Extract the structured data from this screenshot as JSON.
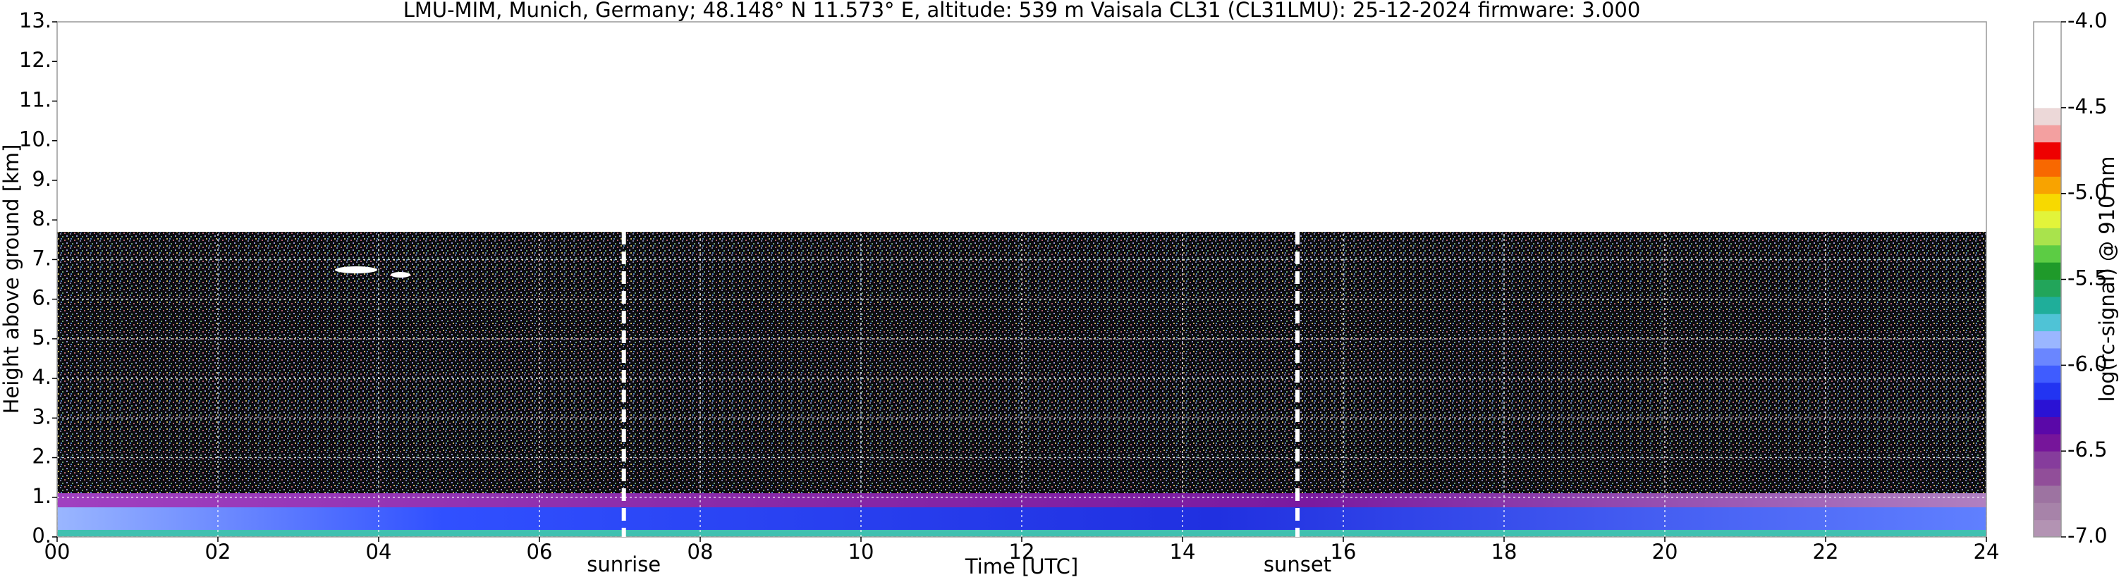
{
  "chart_data": {
    "type": "heatmap",
    "title": "LMU-MIM, Munich, Germany; 48.148° N 11.573° E, altitude: 539 m    Vaisala CL31 (CL31LMU): 25-12-2024    firmware: 3.000",
    "xlabel": "Time [UTC]",
    "ylabel": "Height above ground [km]",
    "xlim": [
      0,
      24
    ],
    "xticks": [
      {
        "value": 0,
        "label": "00"
      },
      {
        "value": 2,
        "label": "02"
      },
      {
        "value": 4,
        "label": "04"
      },
      {
        "value": 6,
        "label": "06"
      },
      {
        "value": 8,
        "label": "08"
      },
      10,
      12,
      14,
      16,
      18,
      20,
      22,
      24
    ],
    "ylim": [
      0,
      13
    ],
    "yticks": [
      {
        "value": 0,
        "label": "0."
      },
      {
        "value": 1,
        "label": "1."
      },
      {
        "value": 2,
        "label": "2."
      },
      {
        "value": 3,
        "label": "3."
      },
      {
        "value": 4,
        "label": "4."
      },
      {
        "value": 5,
        "label": "5."
      },
      {
        "value": 6,
        "label": "6."
      },
      {
        "value": 7,
        "label": "7."
      },
      {
        "value": 8,
        "label": "8."
      },
      {
        "value": 9,
        "label": "9."
      },
      {
        "value": 10,
        "label": "10."
      },
      {
        "value": 11,
        "label": "11."
      },
      {
        "value": 12,
        "label": "12."
      },
      {
        "value": 13,
        "label": "13."
      }
    ],
    "grid": true,
    "annotations": [
      {
        "label": "sunrise",
        "x": 7.05
      },
      {
        "label": "sunset",
        "x": 15.43
      }
    ],
    "colorbar": {
      "label": "log(rc-signal) @ 910 nm",
      "lim": [
        -7,
        -4
      ],
      "ticks": [
        {
          "value": -7,
          "label": "-7.0"
        },
        -6.5,
        {
          "value": -6,
          "label": "-6.0"
        },
        -5.5,
        {
          "value": -5,
          "label": "-5.0"
        },
        -4.5,
        {
          "value": -4,
          "label": "-4.0"
        }
      ],
      "colors": [
        "#b393b3",
        "#a783a9",
        "#9d73a1",
        "#914e99",
        "#863c9c",
        "#76159a",
        "#5a08a8",
        "#2a12d4",
        "#2234f2",
        "#3f5cff",
        "#6a86ff",
        "#9ab6ff",
        "#4fc3d6",
        "#1fae9a",
        "#22a55a",
        "#1f9a2a",
        "#5ccc44",
        "#a9e34c",
        "#e2f43a",
        "#f7d900",
        "#f8a300",
        "#f86800",
        "#ee0000",
        "#f3a0a0",
        "#ecd8d8",
        "#ffffff",
        "#ffffff",
        "#ffffff",
        "#ffffff",
        "#ffffff"
      ]
    }
  }
}
